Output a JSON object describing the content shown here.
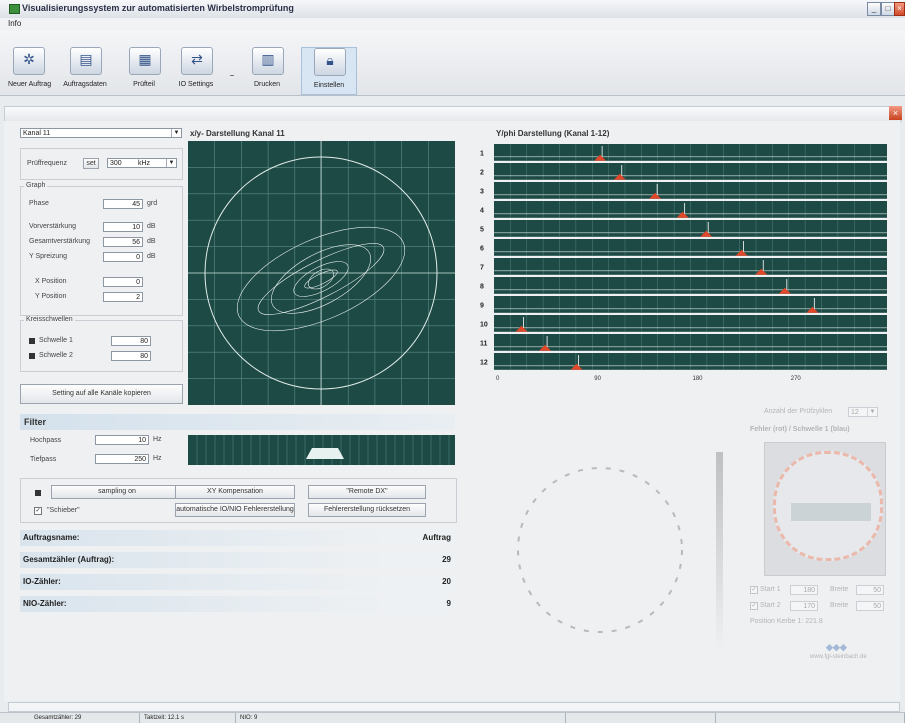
{
  "window": {
    "title": "Visualisierungssystem zur automatisierten Wirbelstromprüfung"
  },
  "menu": {
    "items": [
      "Info"
    ]
  },
  "toolbar": {
    "buttons": [
      {
        "label": "Neuer Auftrag",
        "icon": "gear-icon"
      },
      {
        "label": "Auftragsdaten",
        "icon": "document-icon"
      },
      {
        "label": "Prüfteil",
        "icon": "part-icon"
      },
      {
        "label": "IO Settings",
        "icon": "settings-icon"
      },
      {
        "label": "Drucken",
        "icon": "print-icon"
      },
      {
        "label": "Einstellen",
        "icon": "lock-icon"
      }
    ]
  },
  "left": {
    "channel_select": "Kanal 11",
    "pruef_freq": {
      "label": "Prüffrequenz",
      "set_label": "set",
      "value": "300",
      "unit": "kHz"
    },
    "graph": {
      "title": "Graph",
      "fields": [
        {
          "label": "Phase",
          "value": "45",
          "unit": "grd"
        },
        {
          "label": "Vorverstärkung",
          "value": "10",
          "unit": "dB"
        },
        {
          "label": "Gesamtverstärkung",
          "value": "56",
          "unit": "dB"
        },
        {
          "label": "Y Spreizung",
          "value": "0",
          "unit": "dB"
        }
      ],
      "positions": [
        {
          "label": "X Position",
          "value": "0"
        },
        {
          "label": "Y Position",
          "value": "2"
        }
      ]
    },
    "thresholds": {
      "title": "Kreisschwellen",
      "items": [
        {
          "label": "Schwelle 1",
          "value": "80"
        },
        {
          "label": "Schwelle 2",
          "value": "80"
        }
      ]
    },
    "copy_button": "Setting auf alle Kanäle kopieren"
  },
  "xy_plot": {
    "title": "x/y- Darstellung Kanal 11"
  },
  "yphi_plot": {
    "title": "Y/phi Darstellung (Kanal 1-12)",
    "rows": [
      "1",
      "2",
      "3",
      "4",
      "5",
      "6",
      "7",
      "8",
      "9",
      "10",
      "11",
      "12"
    ],
    "markers": [
      0.27,
      0.32,
      0.41,
      0.48,
      0.54,
      0.63,
      0.68,
      0.74,
      0.81,
      0.07,
      0.13,
      0.21
    ],
    "ticks": [
      "0",
      "90",
      "180",
      "270"
    ]
  },
  "filter": {
    "title": "Filter",
    "hochpass": {
      "label": "Hochpass",
      "value": "10",
      "unit": "Hz"
    },
    "tiefpass": {
      "label": "Tiefpass",
      "value": "250",
      "unit": "Hz"
    }
  },
  "controls": {
    "sampling": "sampling on",
    "xy_comp": "XY Kompensation",
    "remote": "\"Remote DX\"",
    "auto_fehler": "automatische IO/NIO Fehlererstellung",
    "fehler_reset": "Fehlererstellung rücksetzen",
    "schieber": "\"Schieber\""
  },
  "summary": [
    {
      "label": "Auftragsname:",
      "value": "Auftrag"
    },
    {
      "label": "Gesamtzähler (Auftrag):",
      "value": "29"
    },
    {
      "label": "IO-Zähler:",
      "value": "20"
    },
    {
      "label": "NIO-Zähler:",
      "value": "9"
    }
  ],
  "right_panel": {
    "anzahl_label": "Anzahl der Prüfzyklen",
    "anzahl_value": "12",
    "fehler_title": "Fehler (rot) / Schwelle 1 (blau)",
    "start1": {
      "label": "Start 1",
      "value": "180",
      "breite_label": "Breite",
      "breite_value": "50"
    },
    "start2": {
      "label": "Start 2",
      "value": "170",
      "breite_label": "Breite",
      "breite_value": "50"
    },
    "position_text": "Position Kerbe 1: 221.8",
    "logo_text": "www.fgl-steinbach.de"
  },
  "statusbar": {
    "cells": [
      "Gesamtzähler: 29",
      "Taktzeit: 12.1 s",
      "NIO: 9",
      "",
      ""
    ]
  }
}
